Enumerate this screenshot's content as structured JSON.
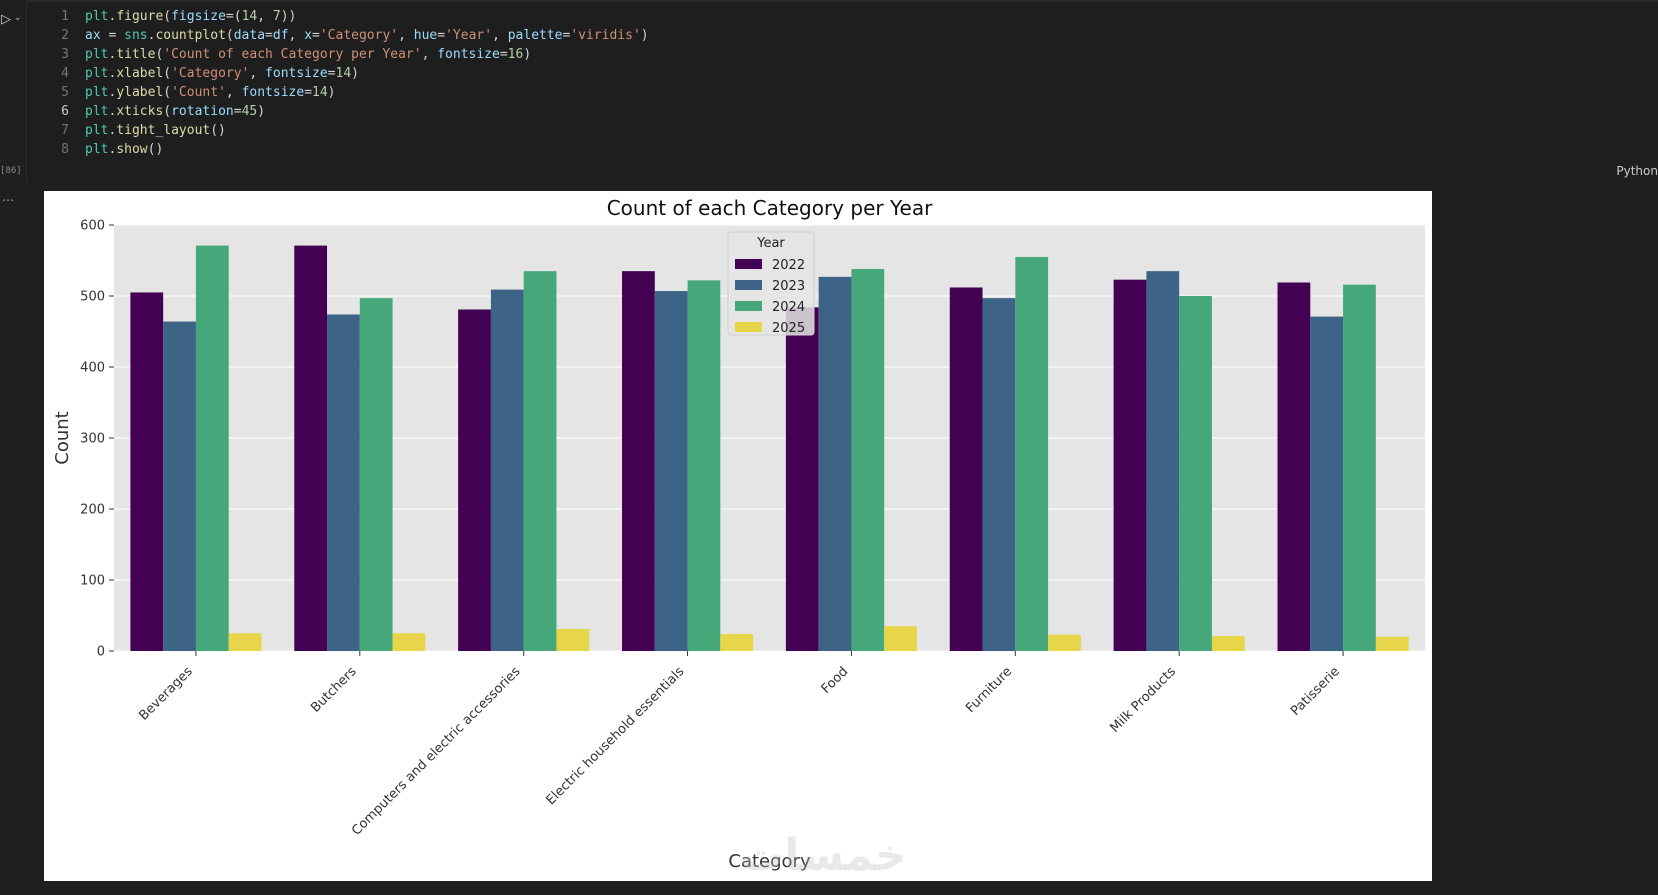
{
  "notebook": {
    "execution_count": "[86]",
    "language": "Python",
    "current_line": 6,
    "code_lines": [
      "plt.figure(figsize=(14, 7))",
      "ax = sns.countplot(data=df, x='Category', hue='Year', palette='viridis')",
      "plt.title('Count of each Category per Year', fontsize=16)",
      "plt.xlabel('Category', fontsize=14)",
      "plt.ylabel('Count', fontsize=14)",
      "plt.xticks(rotation=45)",
      "plt.tight_layout()",
      "plt.show()"
    ]
  },
  "colors": {
    "plot_bg": "#e5e5e5",
    "grid": "#ffffff"
  },
  "chart_data": {
    "type": "bar",
    "title": "Count of each Category per Year",
    "xlabel": "Category",
    "ylabel": "Count",
    "ylim": [
      0,
      600
    ],
    "yticks": [
      0,
      100,
      200,
      300,
      400,
      500,
      600
    ],
    "legend_title": "Year",
    "legend_position": "top-center",
    "grid": true,
    "categories": [
      "Beverages",
      "Butchers",
      "Computers and electric accessories",
      "Electric household essentials",
      "Food",
      "Furniture",
      "Milk Products",
      "Patisserie"
    ],
    "series": [
      {
        "name": "2022",
        "color": "#440154",
        "values": [
          505,
          571,
          481,
          535,
          484,
          512,
          523,
          519
        ]
      },
      {
        "name": "2023",
        "color": "#3d6487",
        "values": [
          464,
          474,
          509,
          507,
          527,
          497,
          535,
          471
        ]
      },
      {
        "name": "2024",
        "color": "#46a87a",
        "values": [
          571,
          497,
          535,
          522,
          538,
          555,
          500,
          516
        ]
      },
      {
        "name": "2025",
        "color": "#e8d64a",
        "values": [
          25,
          25,
          31,
          24,
          35,
          23,
          21,
          20
        ]
      }
    ]
  },
  "watermark": "خمسات"
}
